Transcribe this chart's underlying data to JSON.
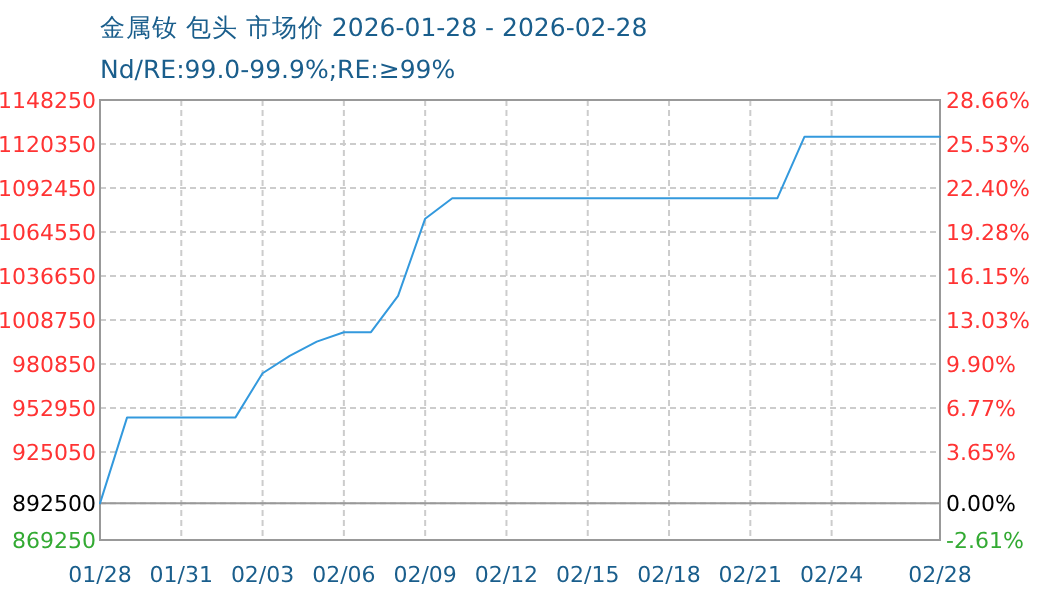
{
  "chart_data": {
    "type": "line",
    "title": "金属钕 包头 市场价 2026-01-28 - 2026-02-28",
    "subtitle": "Nd/RE:99.0-99.9%;RE:≥99%",
    "x": [
      "2026-01-28",
      "2026-01-29",
      "2026-02-02",
      "2026-02-03",
      "2026-02-04",
      "2026-02-05",
      "2026-02-06",
      "2026-02-07",
      "2026-02-08",
      "2026-02-09",
      "2026-02-10",
      "2026-02-22",
      "2026-02-23",
      "2026-02-28"
    ],
    "series": [
      {
        "color": "#3399dd",
        "values": [
          892500,
          947000,
          947000,
          975000,
          986000,
          995000,
          1001000,
          1001000,
          1024000,
          1073000,
          1086000,
          1086000,
          1125000,
          1125000
        ]
      }
    ],
    "xlim": [
      "2026-01-28",
      "2026-02-28"
    ],
    "xticks": [
      {
        "value": "2026-01-28",
        "label": "01/28"
      },
      {
        "value": "2026-01-31",
        "label": "01/31"
      },
      {
        "value": "2026-02-03",
        "label": "02/03"
      },
      {
        "value": "2026-02-06",
        "label": "02/06"
      },
      {
        "value": "2026-02-09",
        "label": "02/09"
      },
      {
        "value": "2026-02-12",
        "label": "02/12"
      },
      {
        "value": "2026-02-15",
        "label": "02/15"
      },
      {
        "value": "2026-02-18",
        "label": "02/18"
      },
      {
        "value": "2026-02-21",
        "label": "02/21"
      },
      {
        "value": "2026-02-24",
        "label": "02/24"
      },
      {
        "value": "2026-02-28",
        "label": "02/28"
      }
    ],
    "ylim": [
      869250,
      1148250
    ],
    "yticks": [
      869250,
      892500,
      925050,
      952950,
      980850,
      1008750,
      1036650,
      1064550,
      1092450,
      1120350,
      1148250
    ],
    "y2lim": [
      -2.61,
      28.66
    ],
    "y2ticks": [
      {
        "value": -2.61,
        "label": "-2.61%"
      },
      {
        "value": 0,
        "label": "0.00%"
      },
      {
        "value": 3.65,
        "label": "3.65%"
      },
      {
        "value": 6.77,
        "label": "6.77%"
      },
      {
        "value": 9.9,
        "label": "9.90%"
      },
      {
        "value": 13.03,
        "label": "13.03%"
      },
      {
        "value": 16.15,
        "label": "16.15%"
      },
      {
        "value": 19.28,
        "label": "19.28%"
      },
      {
        "value": 22.4,
        "label": "22.40%"
      },
      {
        "value": 25.53,
        "label": "25.53%"
      },
      {
        "value": 28.66,
        "label": "28.66%"
      }
    ],
    "ref_lines": [
      {
        "axis": "y",
        "value": 892500,
        "color": "#999999"
      }
    ],
    "grid": true,
    "marker": "none",
    "line_style": "solid"
  }
}
